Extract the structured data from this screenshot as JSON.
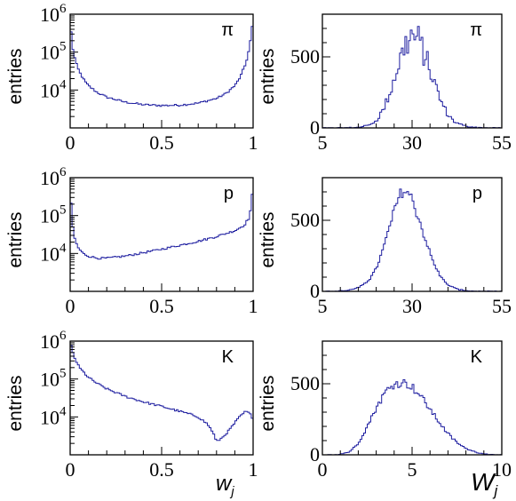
{
  "y_axis_label": "entries",
  "x_axis_titles": {
    "left": {
      "main": "w",
      "sub": "j"
    },
    "right": {
      "main": "W",
      "sub": "j"
    }
  },
  "line_color": "#1f1fa0",
  "chart_data": [
    {
      "type": "line",
      "panel": "left-pi",
      "particle": "π",
      "xlabel": "",
      "ylabel": "entries",
      "xlim": [
        0,
        1
      ],
      "ylim": [
        1000,
        1000000
      ],
      "yscale": "log",
      "xticks": [
        "0",
        "0.5",
        "1"
      ],
      "yticks": [
        {
          "v": 10000,
          "b": "10",
          "e": "4"
        },
        {
          "v": 100000,
          "b": "10",
          "e": "5"
        },
        {
          "v": 1000000,
          "b": "10",
          "e": "6"
        }
      ],
      "series": [
        {
          "x": [
            0.0,
            0.01,
            0.02,
            0.03,
            0.05,
            0.08,
            0.1,
            0.15,
            0.2,
            0.3,
            0.4,
            0.5,
            0.6,
            0.7,
            0.8,
            0.85,
            0.9,
            0.93,
            0.96,
            0.98,
            0.99,
            1.0
          ],
          "y": [
            700000,
            160000,
            90000,
            55000,
            30000,
            17000,
            13000,
            8500,
            6500,
            4800,
            4100,
            3900,
            4000,
            4500,
            6000,
            8000,
            13000,
            22000,
            50000,
            130000,
            300000,
            700000
          ]
        }
      ]
    },
    {
      "type": "line",
      "panel": "right-pi",
      "particle": "π",
      "xlabel": "",
      "ylabel": "entries",
      "xlim": [
        5,
        55
      ],
      "ylim": [
        0,
        800
      ],
      "xticks": [
        "5",
        "30",
        "55"
      ],
      "yticks": [
        {
          "v": 0,
          "t": "0"
        },
        {
          "v": 500,
          "t": "500"
        }
      ],
      "series": [
        {
          "x": [
            10,
            15,
            18,
            20,
            22,
            24,
            26,
            28,
            30,
            32,
            34,
            36,
            38,
            40,
            42,
            45,
            48,
            52
          ],
          "y": [
            0,
            4,
            20,
            50,
            130,
            260,
            430,
            580,
            650,
            610,
            480,
            330,
            190,
            90,
            40,
            12,
            3,
            0
          ],
          "spiky": true
        }
      ]
    },
    {
      "type": "line",
      "panel": "left-p",
      "particle": "p",
      "xlabel": "",
      "ylabel": "entries",
      "xlim": [
        0,
        1
      ],
      "ylim": [
        1000,
        1000000
      ],
      "yscale": "log",
      "xticks": [
        "0",
        "0.5",
        "1"
      ],
      "yticks": [
        {
          "v": 10000,
          "b": "10",
          "e": "4"
        },
        {
          "v": 100000,
          "b": "10",
          "e": "5"
        },
        {
          "v": 1000000,
          "b": "10",
          "e": "6"
        }
      ],
      "series": [
        {
          "x": [
            0.0,
            0.01,
            0.02,
            0.04,
            0.07,
            0.1,
            0.15,
            0.2,
            0.3,
            0.4,
            0.5,
            0.6,
            0.7,
            0.8,
            0.9,
            0.95,
            0.98,
            0.99,
            1.0
          ],
          "y": [
            500000,
            80000,
            30000,
            15000,
            10000,
            8500,
            7500,
            7500,
            8500,
            10500,
            13000,
            16500,
            21000,
            28000,
            40000,
            55000,
            90000,
            200000,
            600000
          ]
        }
      ]
    },
    {
      "type": "line",
      "panel": "right-p",
      "particle": "p",
      "xlabel": "",
      "ylabel": "entries",
      "xlim": [
        5,
        55
      ],
      "ylim": [
        0,
        800
      ],
      "xticks": [
        "5",
        "30",
        "55"
      ],
      "yticks": [
        {
          "v": 0,
          "t": "0"
        },
        {
          "v": 500,
          "t": "500"
        }
      ],
      "series": [
        {
          "x": [
            8,
            12,
            15,
            18,
            20,
            22,
            24,
            26,
            27,
            28,
            29,
            30,
            32,
            34,
            36,
            38,
            40,
            43,
            46,
            50
          ],
          "y": [
            0,
            6,
            25,
            80,
            160,
            300,
            480,
            640,
            700,
            710,
            690,
            650,
            500,
            340,
            200,
            100,
            45,
            12,
            3,
            0
          ],
          "spiky": false
        }
      ]
    },
    {
      "type": "line",
      "panel": "left-K",
      "particle": "K",
      "xlabel": "",
      "ylabel": "entries",
      "xlim": [
        0,
        1
      ],
      "ylim": [
        1000,
        1000000
      ],
      "yscale": "log",
      "xticks": [
        "0",
        "0.5",
        "1"
      ],
      "yticks": [
        {
          "v": 10000,
          "b": "10",
          "e": "4"
        },
        {
          "v": 100000,
          "b": "10",
          "e": "5"
        },
        {
          "v": 1000000,
          "b": "10",
          "e": "6"
        }
      ],
      "series": [
        {
          "x": [
            0.0,
            0.02,
            0.05,
            0.1,
            0.15,
            0.2,
            0.3,
            0.4,
            0.5,
            0.6,
            0.65,
            0.7,
            0.75,
            0.78,
            0.8,
            0.83,
            0.87,
            0.9,
            0.93,
            0.96,
            0.98,
            1.0
          ],
          "y": [
            900000,
            400000,
            200000,
            110000,
            75000,
            55000,
            35000,
            25000,
            19000,
            14000,
            12000,
            10000,
            6500,
            4000,
            2200,
            2800,
            4500,
            7000,
            10500,
            14000,
            12500,
            9000
          ]
        }
      ]
    },
    {
      "type": "line",
      "panel": "right-K",
      "particle": "K",
      "xlabel": "",
      "ylabel": "entries",
      "xlim": [
        0,
        10
      ],
      "ylim": [
        0,
        800
      ],
      "xticks": [
        "0",
        "5",
        "10"
      ],
      "yticks": [
        {
          "v": 0,
          "t": "0"
        },
        {
          "v": 500,
          "t": "500"
        }
      ],
      "series": [
        {
          "x": [
            0.8,
            1.5,
            2.0,
            2.5,
            3.0,
            3.5,
            4.0,
            4.5,
            5.0,
            5.5,
            6.0,
            6.5,
            7.0,
            7.5,
            8.0,
            8.5,
            9.0,
            9.5
          ],
          "y": [
            0,
            20,
            80,
            200,
            330,
            440,
            500,
            510,
            480,
            410,
            320,
            230,
            150,
            85,
            45,
            20,
            8,
            0
          ],
          "spiky": false
        }
      ]
    }
  ]
}
